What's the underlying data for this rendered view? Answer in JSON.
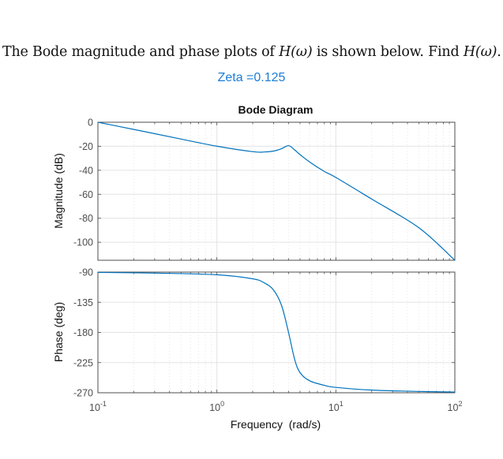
{
  "question": {
    "prefix": "The Bode magnitude and phase plots of ",
    "func": "H(ω)",
    "middle": " is shown below. Find ",
    "suffix": "."
  },
  "subtitle": "Zeta =0.125",
  "colors": {
    "curve": "#0072bd",
    "subtitle": "#1c7cd5",
    "axis": "#4d4d4d",
    "grid": "#e3e3e3",
    "tick_label": "#4d4d4d"
  },
  "chart_data": [
    {
      "type": "line",
      "title": "Bode Diagram",
      "xlabel": "Frequency  (rad/s)",
      "ylabel": "Magnitude (dB)",
      "xscale": "log",
      "xlim": [
        0.1,
        100
      ],
      "ylim": [
        -115,
        0
      ],
      "yticks": [
        0,
        -20,
        -40,
        -60,
        -80,
        -100
      ],
      "grid": true,
      "series": [
        {
          "name": "magnitude",
          "x": [
            0.1,
            0.2,
            0.3,
            0.5,
            1,
            2,
            2.5,
            3,
            3.5,
            4,
            4.5,
            5,
            6,
            8,
            10,
            20,
            50,
            100
          ],
          "values": [
            0,
            -6,
            -9.5,
            -14,
            -20,
            -24.5,
            -24.8,
            -24,
            -22,
            -19.5,
            -23,
            -27,
            -33,
            -41,
            -46,
            -64,
            -88,
            -115
          ]
        }
      ]
    },
    {
      "type": "line",
      "xlabel": "Frequency  (rad/s)",
      "ylabel": "Phase (deg)",
      "xscale": "log",
      "xlim": [
        0.1,
        100
      ],
      "ylim": [
        -270,
        -90
      ],
      "yticks": [
        -90,
        -135,
        -180,
        -225,
        -270
      ],
      "xticks": [
        "10^-1",
        "10^0",
        "10^1",
        "10^2"
      ],
      "grid": true,
      "series": [
        {
          "name": "phase",
          "x": [
            0.1,
            0.3,
            1,
            2,
            2.5,
            3,
            3.5,
            4,
            4.5,
            5,
            6,
            8,
            10,
            20,
            50,
            100
          ],
          "values": [
            -90.5,
            -91.5,
            -94,
            -100,
            -106,
            -117,
            -140,
            -180,
            -220,
            -240,
            -252,
            -259,
            -262,
            -266,
            -268,
            -269
          ]
        }
      ]
    }
  ],
  "axes": {
    "mag_yticks": [
      "0",
      "-20",
      "-40",
      "-60",
      "-80",
      "-100"
    ],
    "phase_yticks": [
      "-90",
      "-135",
      "-180",
      "-225",
      "-270"
    ],
    "xticks": [
      {
        "base": "10",
        "exp": "-1"
      },
      {
        "base": "10",
        "exp": "0"
      },
      {
        "base": "10",
        "exp": "1"
      },
      {
        "base": "10",
        "exp": "2"
      }
    ],
    "title": "Bode Diagram",
    "mag_ylabel": "Magnitude (dB)",
    "phase_ylabel": "Phase (deg)",
    "xlabel": "Frequency  (rad/s)"
  }
}
